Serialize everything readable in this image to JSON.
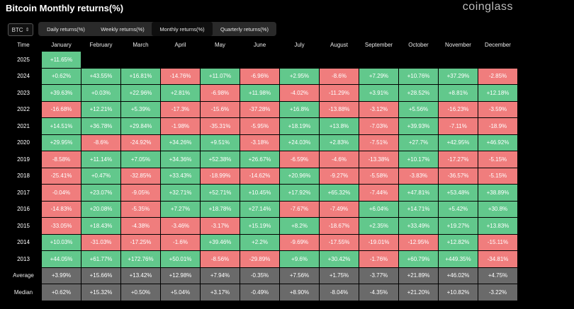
{
  "header": {
    "title": "Bitcoin Monthly returns(%)",
    "logo": "coinglass"
  },
  "asset_select": {
    "value": "BTC"
  },
  "tabs": [
    {
      "label": "Daily returns(%)",
      "active": false
    },
    {
      "label": "Weekly returns(%)",
      "active": false
    },
    {
      "label": "Monthly returns(%)",
      "active": true
    },
    {
      "label": "Quarterly returns(%)",
      "active": false
    }
  ],
  "columns": [
    "Time",
    "January",
    "February",
    "March",
    "April",
    "May",
    "June",
    "July",
    "August",
    "September",
    "October",
    "November",
    "December"
  ],
  "rows": [
    {
      "year": "2025",
      "values": [
        "+11.65%"
      ]
    },
    {
      "year": "2024",
      "values": [
        "+0.62%",
        "+43.55%",
        "+16.81%",
        "-14.76%",
        "+11.07%",
        "-6.96%",
        "+2.95%",
        "-8.6%",
        "+7.29%",
        "+10.76%",
        "+37.29%",
        "-2.85%"
      ]
    },
    {
      "year": "2023",
      "values": [
        "+39.63%",
        "+0.03%",
        "+22.96%",
        "+2.81%",
        "-6.98%",
        "+11.98%",
        "-4.02%",
        "-11.29%",
        "+3.91%",
        "+28.52%",
        "+8.81%",
        "+12.18%"
      ]
    },
    {
      "year": "2022",
      "values": [
        "-16.68%",
        "+12.21%",
        "+5.39%",
        "-17.3%",
        "-15.6%",
        "-37.28%",
        "+16.8%",
        "-13.88%",
        "-3.12%",
        "+5.56%",
        "-16.23%",
        "-3.59%"
      ]
    },
    {
      "year": "2021",
      "values": [
        "+14.51%",
        "+36.78%",
        "+29.84%",
        "-1.98%",
        "-35.31%",
        "-5.95%",
        "+18.19%",
        "+13.8%",
        "-7.03%",
        "+39.93%",
        "-7.11%",
        "-18.9%"
      ]
    },
    {
      "year": "2020",
      "values": [
        "+29.95%",
        "-8.6%",
        "-24.92%",
        "+34.26%",
        "+9.51%",
        "-3.18%",
        "+24.03%",
        "+2.83%",
        "-7.51%",
        "+27.7%",
        "+42.95%",
        "+46.92%"
      ]
    },
    {
      "year": "2019",
      "values": [
        "-8.58%",
        "+11.14%",
        "+7.05%",
        "+34.36%",
        "+52.38%",
        "+26.67%",
        "-6.59%",
        "-4.6%",
        "-13.38%",
        "+10.17%",
        "-17.27%",
        "-5.15%"
      ]
    },
    {
      "year": "2018",
      "values": [
        "-25.41%",
        "+0.47%",
        "-32.85%",
        "+33.43%",
        "-18.99%",
        "-14.62%",
        "+20.96%",
        "-9.27%",
        "-5.58%",
        "-3.83%",
        "-36.57%",
        "-5.15%"
      ]
    },
    {
      "year": "2017",
      "values": [
        "-0.04%",
        "+23.07%",
        "-9.05%",
        "+32.71%",
        "+52.71%",
        "+10.45%",
        "+17.92%",
        "+65.32%",
        "-7.44%",
        "+47.81%",
        "+53.48%",
        "+38.89%"
      ]
    },
    {
      "year": "2016",
      "values": [
        "-14.83%",
        "+20.08%",
        "-5.35%",
        "+7.27%",
        "+18.78%",
        "+27.14%",
        "-7.67%",
        "-7.49%",
        "+6.04%",
        "+14.71%",
        "+5.42%",
        "+30.8%"
      ]
    },
    {
      "year": "2015",
      "values": [
        "-33.05%",
        "+18.43%",
        "-4.38%",
        "-3.46%",
        "-3.17%",
        "+15.19%",
        "+8.2%",
        "-18.67%",
        "+2.35%",
        "+33.49%",
        "+19.27%",
        "+13.83%"
      ]
    },
    {
      "year": "2014",
      "values": [
        "+10.03%",
        "-31.03%",
        "-17.25%",
        "-1.6%",
        "+39.46%",
        "+2.2%",
        "-9.69%",
        "-17.55%",
        "-19.01%",
        "-12.95%",
        "+12.82%",
        "-15.11%"
      ]
    },
    {
      "year": "2013",
      "values": [
        "+44.05%",
        "+61.77%",
        "+172.76%",
        "+50.01%",
        "-8.56%",
        "-29.89%",
        "+9.6%",
        "+30.42%",
        "-1.76%",
        "+60.79%",
        "+449.35%",
        "-34.81%"
      ]
    }
  ],
  "stats": [
    {
      "label": "Average",
      "values": [
        "+3.99%",
        "+15.66%",
        "+13.42%",
        "+12.98%",
        "+7.94%",
        "-0.35%",
        "+7.56%",
        "+1.75%",
        "-3.77%",
        "+21.89%",
        "+46.02%",
        "+4.75%"
      ]
    },
    {
      "label": "Median",
      "values": [
        "+0.62%",
        "+15.32%",
        "+0.50%",
        "+5.04%",
        "+3.17%",
        "-0.49%",
        "+8.90%",
        "-8.04%",
        "-4.35%",
        "+21.20%",
        "+10.82%",
        "-3.22%"
      ]
    }
  ],
  "colors": {
    "positive": "#62c88c",
    "negative": "#f07d7d",
    "stat": "#6a6a6a",
    "background": "#000000"
  }
}
